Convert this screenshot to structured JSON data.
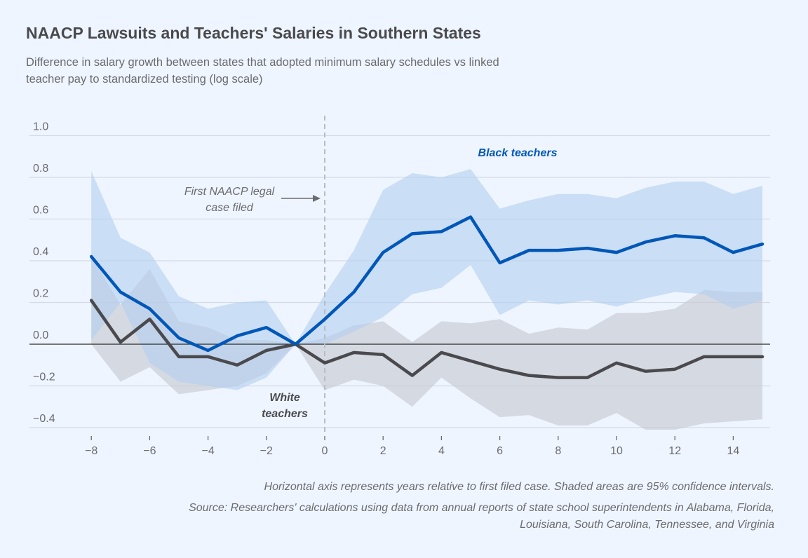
{
  "chart_data": {
    "type": "line",
    "title": "NAACP Lawsuits and Teachers' Salaries in Southern States",
    "subtitle": "Difference in salary growth between states that adopted minimum salary schedules vs linked teacher pay to standardized testing (log scale)",
    "xlabel": "",
    "ylabel": "",
    "x": [
      -8,
      -7,
      -6,
      -5,
      -4,
      -3,
      -2,
      -1,
      0,
      1,
      2,
      3,
      4,
      5,
      6,
      7,
      8,
      9,
      10,
      11,
      12,
      13,
      14,
      15
    ],
    "xlim": [
      -9,
      15.5
    ],
    "ylim": [
      -0.4,
      1.0
    ],
    "x_ticks": [
      -8,
      -6,
      -4,
      -2,
      0,
      2,
      4,
      6,
      8,
      10,
      12,
      14
    ],
    "x_tick_labels": [
      "−8",
      "−6",
      "−4",
      "−2",
      "0",
      "2",
      "4",
      "6",
      "8",
      "10",
      "12",
      "14"
    ],
    "y_ticks": [
      -0.4,
      -0.2,
      0.0,
      0.2,
      0.4,
      0.6,
      0.8,
      1.0
    ],
    "y_tick_labels": [
      "−0.4",
      "−0.2",
      "0.0",
      "0.2",
      "0.4",
      "0.6",
      "0.8",
      "1.0"
    ],
    "grid": true,
    "series": [
      {
        "name": "Black teachers",
        "color": "#0057b8",
        "band_color": "#b3cff0",
        "values": [
          0.42,
          0.25,
          0.17,
          0.03,
          -0.03,
          0.04,
          0.08,
          0.0,
          0.12,
          0.25,
          0.44,
          0.53,
          0.54,
          0.61,
          0.39,
          0.45,
          0.45,
          0.46,
          0.44,
          0.49,
          0.52,
          0.51,
          0.44,
          0.48
        ],
        "ci_upper": [
          0.83,
          0.51,
          0.44,
          0.23,
          0.17,
          0.2,
          0.21,
          0.0,
          0.24,
          0.45,
          0.74,
          0.82,
          0.8,
          0.84,
          0.65,
          0.69,
          0.72,
          0.72,
          0.7,
          0.75,
          0.78,
          0.78,
          0.72,
          0.76
        ],
        "ci_lower": [
          0.02,
          0.2,
          -0.09,
          -0.18,
          -0.2,
          -0.22,
          -0.16,
          0.0,
          0.0,
          0.06,
          0.13,
          0.24,
          0.27,
          0.38,
          0.14,
          0.21,
          0.19,
          0.21,
          0.18,
          0.22,
          0.25,
          0.24,
          0.17,
          0.21
        ]
      },
      {
        "name": "White teachers",
        "color": "#4a4a4e",
        "band_color": "#c7cad3",
        "values": [
          0.21,
          0.01,
          0.12,
          -0.06,
          -0.06,
          -0.1,
          -0.03,
          0.0,
          -0.09,
          -0.04,
          -0.05,
          -0.15,
          -0.04,
          -0.08,
          -0.12,
          -0.15,
          -0.16,
          -0.16,
          -0.09,
          -0.13,
          -0.12,
          -0.06,
          -0.06,
          -0.06
        ],
        "ci_upper": [
          0.42,
          0.19,
          0.36,
          0.11,
          0.08,
          0.02,
          0.02,
          0.0,
          0.03,
          0.09,
          0.11,
          0.01,
          0.11,
          0.1,
          0.12,
          0.05,
          0.08,
          0.07,
          0.15,
          0.15,
          0.17,
          0.26,
          0.25,
          0.25
        ],
        "ci_lower": [
          0.0,
          -0.18,
          -0.11,
          -0.24,
          -0.22,
          -0.2,
          -0.14,
          0.0,
          -0.22,
          -0.17,
          -0.2,
          -0.3,
          -0.16,
          -0.26,
          -0.35,
          -0.34,
          -0.39,
          -0.39,
          -0.33,
          -0.41,
          -0.41,
          -0.38,
          -0.37,
          -0.36
        ]
      }
    ],
    "annotations": [
      {
        "text_line1": "First NAACP legal",
        "text_line2": "case filed",
        "points_to_x": 0
      },
      {
        "text": "Black teachers",
        "series": "Black teachers"
      },
      {
        "text_line1": "White",
        "text_line2": "teachers",
        "series": "White teachers"
      }
    ],
    "reference_line_x": 0,
    "zero_line_y": 0
  },
  "footer": {
    "note": "Horizontal axis represents years relative to first filed case. Shaded areas are 95% confidence intervals.",
    "source_line1": "Source: Researchers' calculations using data from annual reports of state school superintendents in Alabama, Florida,",
    "source_line2": "Louisiana, South Carolina, Tennessee, and Virginia"
  }
}
